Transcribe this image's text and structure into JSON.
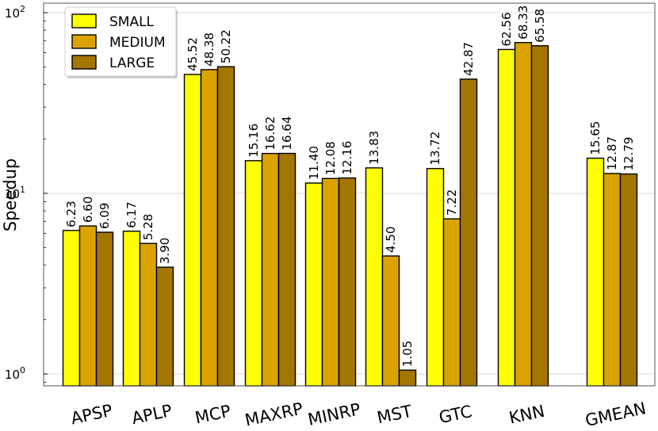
{
  "chart_data": {
    "type": "bar",
    "ylabel": "Speedup",
    "yscale": "log",
    "ylim": [
      0.85,
      110
    ],
    "yticks": [
      {
        "base": "10",
        "exp": "0",
        "value": 1
      },
      {
        "base": "10",
        "exp": "1",
        "value": 10
      },
      {
        "base": "10",
        "exp": "2",
        "value": 100
      }
    ],
    "grid": "horizontal-major",
    "legend": "top-left",
    "categories": [
      "APSP",
      "APLP",
      "MCP",
      "MAXRP",
      "MINRP",
      "MST",
      "GTC",
      "KNN",
      "GMEAN"
    ],
    "series": [
      {
        "name": "SMALL",
        "color": "#ffff00",
        "values": [
          6.23,
          6.17,
          45.52,
          15.16,
          11.4,
          13.83,
          13.72,
          62.56,
          15.65
        ],
        "labels": [
          "6.23",
          "6.17",
          "45.52",
          "15.16",
          "11.40",
          "13.83",
          "13.72",
          "62.56",
          "15.65"
        ]
      },
      {
        "name": "MEDIUM",
        "color": "#dba300",
        "values": [
          6.6,
          5.28,
          48.38,
          16.62,
          12.08,
          4.5,
          7.22,
          68.33,
          12.87
        ],
        "labels": [
          "6.60",
          "5.28",
          "48.38",
          "16.62",
          "12.08",
          "4.50",
          "7.22",
          "68.33",
          "12.87"
        ]
      },
      {
        "name": "LARGE",
        "color": "#a37600",
        "values": [
          6.09,
          3.9,
          50.22,
          16.64,
          12.16,
          1.05,
          42.87,
          65.58,
          12.79
        ],
        "labels": [
          "6.09",
          "3.90",
          "50.22",
          "16.64",
          "12.16",
          "1.05",
          "42.87",
          "65.58",
          "12.79"
        ]
      }
    ]
  }
}
